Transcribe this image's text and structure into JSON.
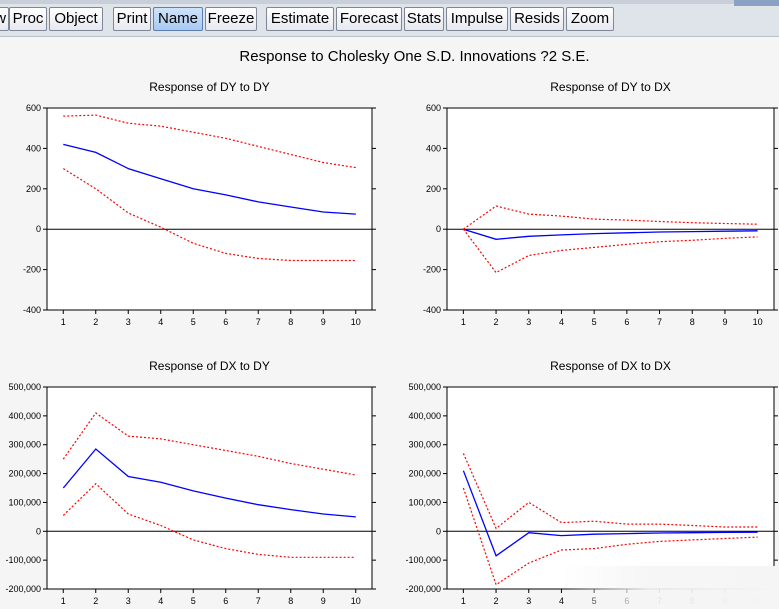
{
  "toolbar": {
    "buttons": [
      {
        "label": "w",
        "active": false
      },
      {
        "label": "Proc",
        "active": false
      },
      {
        "label": "Object",
        "active": false
      },
      {
        "label": "Print",
        "active": false
      },
      {
        "label": "Name",
        "active": true
      },
      {
        "label": "Freeze",
        "active": false
      },
      {
        "label": "Estimate",
        "active": false
      },
      {
        "label": "Forecast",
        "active": false
      },
      {
        "label": "Stats",
        "active": false
      },
      {
        "label": "Impulse",
        "active": false
      },
      {
        "label": "Resids",
        "active": false
      },
      {
        "label": "Zoom",
        "active": false
      }
    ]
  },
  "graph": {
    "title": "Response to Cholesky One S.D. Innovations ?2 S.E."
  },
  "colors": {
    "response": "#0000ff",
    "bands": "#ff0000",
    "zero_line": "#000000"
  },
  "chart_data": [
    {
      "type": "line",
      "title": "Response of DY to DY",
      "x": [
        1,
        2,
        3,
        4,
        5,
        6,
        7,
        8,
        9,
        10
      ],
      "ylim": [
        -400,
        600
      ],
      "yticks": [
        -400,
        -200,
        0,
        200,
        400,
        600
      ],
      "yticklabels": [
        "-400",
        "-200",
        "0",
        "200",
        "400",
        "600"
      ],
      "series": [
        {
          "style": "solid",
          "values": [
            420,
            380,
            300,
            250,
            200,
            170,
            135,
            110,
            85,
            75
          ]
        },
        {
          "style": "dotted",
          "values": [
            560,
            565,
            525,
            510,
            480,
            450,
            410,
            370,
            330,
            305
          ]
        },
        {
          "style": "dotted",
          "values": [
            300,
            200,
            80,
            10,
            -70,
            -120,
            -145,
            -155,
            -155,
            -155
          ]
        }
      ]
    },
    {
      "type": "line",
      "title": "Response of DY to DX",
      "x": [
        1,
        2,
        3,
        4,
        5,
        6,
        7,
        8,
        9,
        10
      ],
      "ylim": [
        -400,
        600
      ],
      "yticks": [
        -400,
        -200,
        0,
        200,
        400,
        600
      ],
      "yticklabels": [
        "-400",
        "-200",
        "0",
        "200",
        "400",
        "600"
      ],
      "series": [
        {
          "style": "solid",
          "values": [
            0,
            -50,
            -35,
            -28,
            -22,
            -18,
            -14,
            -12,
            -10,
            -8
          ]
        },
        {
          "style": "dotted",
          "values": [
            0,
            115,
            75,
            65,
            50,
            45,
            38,
            32,
            28,
            25
          ]
        },
        {
          "style": "dotted",
          "values": [
            0,
            -215,
            -130,
            -105,
            -90,
            -75,
            -62,
            -55,
            -45,
            -38
          ]
        }
      ]
    },
    {
      "type": "line",
      "title": "Response of DX to DY",
      "x": [
        1,
        2,
        3,
        4,
        5,
        6,
        7,
        8,
        9,
        10
      ],
      "ylim": [
        -200000,
        500000
      ],
      "yticks": [
        -200000,
        -100000,
        0,
        100000,
        200000,
        300000,
        400000,
        500000
      ],
      "yticklabels": [
        "-200,000",
        "-100,000",
        "0",
        "100,000",
        "200,000",
        "300,000",
        "400,000",
        "500,000"
      ],
      "series": [
        {
          "style": "solid",
          "values": [
            150000,
            285000,
            190000,
            170000,
            140000,
            115000,
            92000,
            75000,
            60000,
            50000
          ]
        },
        {
          "style": "dotted",
          "values": [
            250000,
            410000,
            330000,
            320000,
            300000,
            280000,
            260000,
            235000,
            215000,
            195000
          ]
        },
        {
          "style": "dotted",
          "values": [
            55000,
            165000,
            60000,
            20000,
            -30000,
            -60000,
            -80000,
            -90000,
            -90000,
            -90000
          ]
        }
      ]
    },
    {
      "type": "line",
      "title": "Response of DX to DX",
      "x": [
        1,
        2,
        3,
        4,
        5,
        6,
        7,
        8,
        9,
        10
      ],
      "ylim": [
        -200000,
        500000
      ],
      "yticks": [
        -200000,
        -100000,
        0,
        100000,
        200000,
        300000,
        400000,
        500000
      ],
      "yticklabels": [
        "-200,000",
        "-100,000",
        "0",
        "100,000",
        "200,000",
        "300,000",
        "400,000",
        "500,000"
      ],
      "series": [
        {
          "style": "solid",
          "values": [
            210000,
            -85000,
            -5000,
            -15000,
            -10000,
            -8000,
            -6000,
            -5000,
            -4000,
            -3000
          ]
        },
        {
          "style": "dotted",
          "values": [
            270000,
            10000,
            100000,
            30000,
            35000,
            25000,
            25000,
            20000,
            15000,
            15000
          ]
        },
        {
          "style": "dotted",
          "values": [
            150000,
            -185000,
            -110000,
            -65000,
            -60000,
            -45000,
            -35000,
            -30000,
            -25000,
            -20000
          ]
        }
      ]
    }
  ]
}
